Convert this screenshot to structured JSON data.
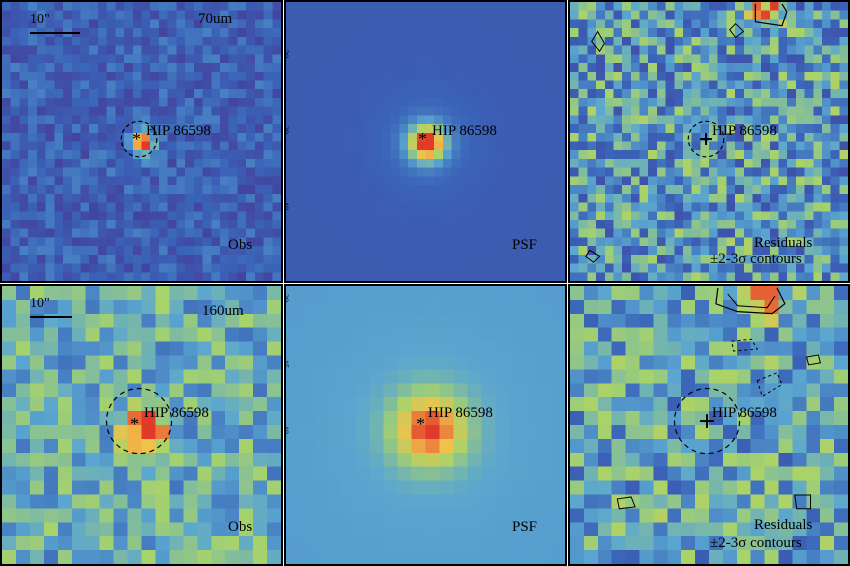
{
  "figure": {
    "scale_label": "10\"",
    "source_name": "HIP 86598",
    "rows": [
      {
        "band": "70um",
        "panels": [
          {
            "kind": "obs",
            "label": "Obs",
            "band_label": "70um"
          },
          {
            "kind": "psf",
            "label": "PSF",
            "ticks": [
              "30",
              "20",
              "10"
            ]
          },
          {
            "kind": "res",
            "label_line1": "Residuals",
            "label_line2": "±2-3σ contours"
          }
        ]
      },
      {
        "band": "160um",
        "panels": [
          {
            "kind": "obs",
            "label": "Obs",
            "band_label": "160um"
          },
          {
            "kind": "psf",
            "label": "PSF",
            "ticks": [
              "20",
              "15",
              "10"
            ]
          },
          {
            "kind": "res",
            "label_line1": "Residuals",
            "label_line2": "±2-3σ contours"
          }
        ]
      }
    ]
  },
  "colors": {
    "low": "#4a2a8a",
    "mid_low": "#3a63b8",
    "mid": "#5aa6d0",
    "mid_high": "#a8d36a",
    "high": "#f2c14a",
    "peak": "#e03a2a",
    "frame": "#000000"
  }
}
